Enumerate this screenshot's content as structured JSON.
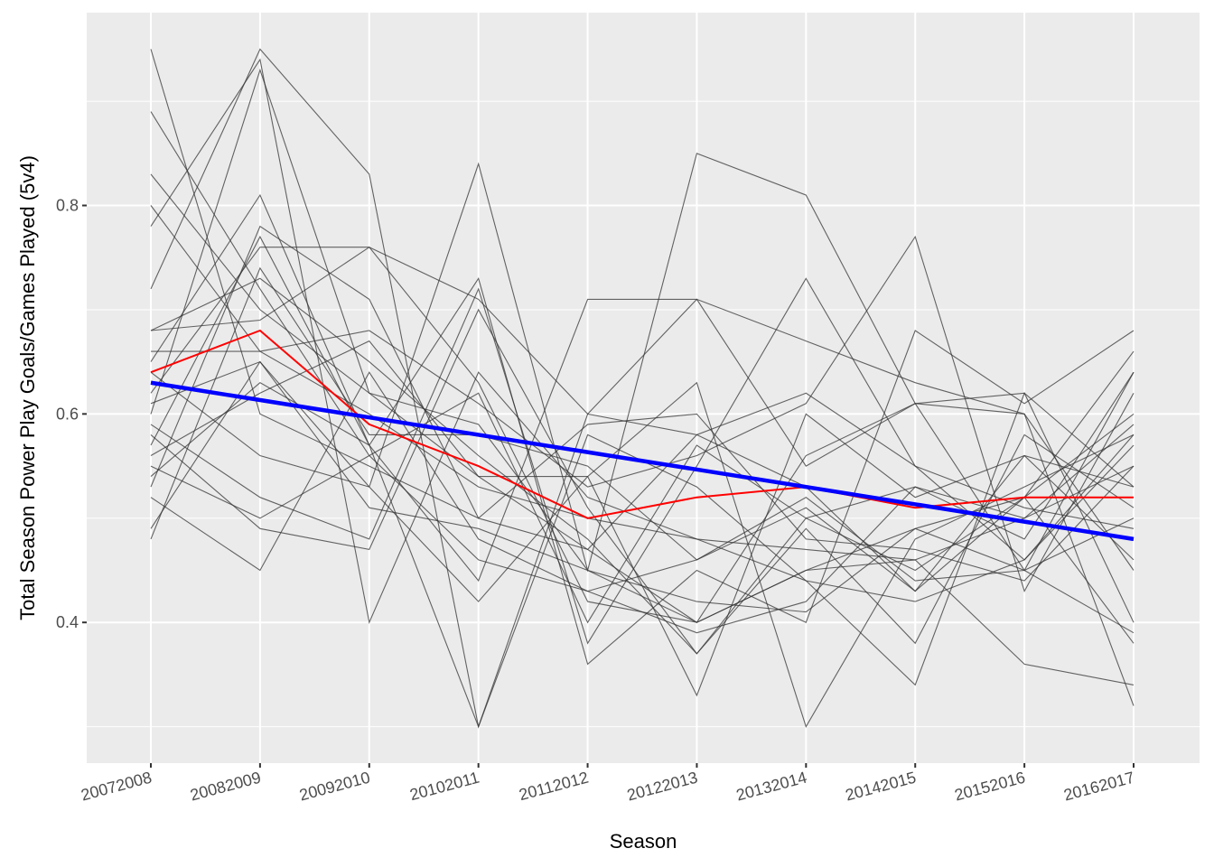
{
  "chart_data": {
    "type": "line",
    "title": "",
    "xlabel": "Season",
    "ylabel": "Total Season Power Play Goals/Games Played (5v4)",
    "categories": [
      "20072008",
      "20082009",
      "20092010",
      "20102011",
      "20112012",
      "20122013",
      "20132014",
      "20142015",
      "20152016",
      "20162017"
    ],
    "ylim": [
      0.265,
      0.985
    ],
    "yticks": [
      0.4,
      0.6,
      0.8
    ],
    "ytick_labels": [
      "0.4",
      "0.6",
      "0.8"
    ],
    "grid": true,
    "legend": "none",
    "background": "#ebebeb",
    "team_color": "#333333",
    "average_color": "#ff0000",
    "trend_color": "#0000ff",
    "team_series": [
      [
        0.95,
        0.6,
        0.55,
        0.5,
        0.47,
        0.4,
        0.45,
        0.49,
        0.45,
        0.39
      ],
      [
        0.89,
        0.72,
        0.56,
        0.46,
        0.43,
        0.46,
        0.51,
        0.43,
        0.56,
        0.46
      ],
      [
        0.83,
        0.7,
        0.62,
        0.59,
        0.45,
        0.42,
        0.41,
        0.49,
        0.52,
        0.6
      ],
      [
        0.8,
        0.66,
        0.6,
        0.53,
        0.5,
        0.48,
        0.47,
        0.46,
        0.5,
        0.55
      ],
      [
        0.78,
        0.94,
        0.4,
        0.64,
        0.52,
        0.48,
        0.44,
        0.42,
        0.46,
        0.58
      ],
      [
        0.72,
        0.95,
        0.83,
        0.3,
        0.6,
        0.71,
        0.55,
        0.61,
        0.6,
        0.32
      ],
      [
        0.68,
        0.69,
        0.76,
        0.71,
        0.6,
        0.58,
        0.62,
        0.55,
        0.51,
        0.49
      ],
      [
        0.68,
        0.73,
        0.65,
        0.56,
        0.48,
        0.37,
        0.5,
        0.45,
        0.52,
        0.38
      ],
      [
        0.66,
        0.66,
        0.68,
        0.61,
        0.53,
        0.56,
        0.61,
        0.77,
        0.43,
        0.62
      ],
      [
        0.65,
        0.81,
        0.57,
        0.44,
        0.71,
        0.71,
        0.67,
        0.63,
        0.6,
        0.45
      ],
      [
        0.64,
        0.56,
        0.53,
        0.84,
        0.45,
        0.85,
        0.81,
        0.61,
        0.62,
        0.53
      ],
      [
        0.62,
        0.76,
        0.76,
        0.63,
        0.42,
        0.4,
        0.56,
        0.61,
        0.45,
        0.64
      ],
      [
        0.61,
        0.65,
        0.53,
        0.42,
        0.54,
        0.63,
        0.3,
        0.48,
        0.53,
        0.58
      ],
      [
        0.6,
        0.93,
        0.62,
        0.54,
        0.54,
        0.33,
        0.6,
        0.52,
        0.56,
        0.53
      ],
      [
        0.59,
        0.52,
        0.48,
        0.72,
        0.38,
        0.55,
        0.73,
        0.55,
        0.46,
        0.57
      ],
      [
        0.58,
        0.49,
        0.47,
        0.7,
        0.51,
        0.37,
        0.49,
        0.38,
        0.58,
        0.51
      ],
      [
        0.57,
        0.77,
        0.57,
        0.3,
        0.58,
        0.53,
        0.44,
        0.34,
        0.62,
        0.4
      ],
      [
        0.56,
        0.62,
        0.67,
        0.54,
        0.47,
        0.58,
        0.53,
        0.43,
        0.52,
        0.66
      ],
      [
        0.55,
        0.5,
        0.56,
        0.62,
        0.4,
        0.57,
        0.5,
        0.53,
        0.48,
        0.64
      ],
      [
        0.54,
        0.63,
        0.57,
        0.73,
        0.36,
        0.45,
        0.4,
        0.68,
        0.61,
        0.68
      ],
      [
        0.53,
        0.78,
        0.71,
        0.5,
        0.59,
        0.6,
        0.48,
        0.47,
        0.44,
        0.55
      ],
      [
        0.52,
        0.45,
        0.64,
        0.48,
        0.43,
        0.39,
        0.42,
        0.53,
        0.5,
        0.59
      ],
      [
        0.49,
        0.65,
        0.51,
        0.49,
        0.45,
        0.4,
        0.45,
        0.46,
        0.36,
        0.34
      ],
      [
        0.48,
        0.74,
        0.58,
        0.58,
        0.55,
        0.46,
        0.52,
        0.44,
        0.45,
        0.5
      ]
    ],
    "average_series": [
      0.64,
      0.68,
      0.59,
      0.55,
      0.5,
      0.52,
      0.53,
      0.51,
      0.52,
      0.52
    ],
    "trend_line": {
      "start": 0.63,
      "end": 0.48
    }
  }
}
